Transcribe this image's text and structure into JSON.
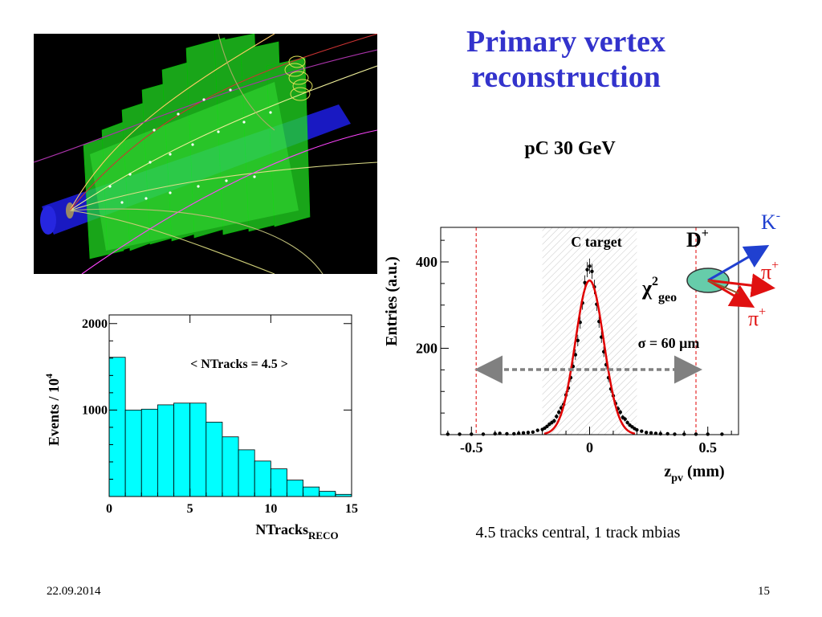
{
  "slide": {
    "title": "Primary vertex reconstruction",
    "subtitle": "pC  30 GeV",
    "caption": "4.5 tracks central, 1 track mbias",
    "footer_date": "22.09.2014",
    "footer_page": "15"
  },
  "colors": {
    "title": "#3333cc",
    "hist_fill": "#00ffff",
    "fit_curve": "#e00000",
    "kaon_arrow": "#2040d0",
    "pion_arrow": "#e01010",
    "dashed_marker": "#e00000"
  },
  "decay_sketch": {
    "particle": "D",
    "particle_sup": "+",
    "chi2": "χ",
    "chi2_sup": "2",
    "chi2_sub": "geo",
    "kaon": "K",
    "kaon_sup": "-",
    "pion1": "π",
    "pion1_sup": "+",
    "pion2": "π",
    "pion2_sup": "+"
  },
  "chart_data": [
    {
      "type": "bar",
      "xlabel_main": "NTracks",
      "xlabel_sub": "RECO",
      "ylabel_main": "Events / 10",
      "ylabel_sup": "4",
      "annotation": "< NTracks = 4.5 >",
      "xlim": [
        0,
        15
      ],
      "ylim": [
        0,
        2100
      ],
      "xticks": [
        0,
        5,
        10,
        15
      ],
      "yticks": [
        1000,
        2000
      ],
      "bin_edges": [
        0,
        1,
        2,
        3,
        4,
        5,
        6,
        7,
        8,
        9,
        10,
        11,
        12,
        13,
        14,
        15
      ],
      "values": [
        1610,
        1000,
        1010,
        1060,
        1080,
        1080,
        860,
        690,
        540,
        410,
        320,
        190,
        110,
        60,
        25
      ]
    },
    {
      "type": "scatter",
      "xlabel_main": "z",
      "xlabel_sub": "pv",
      "xlabel_rest": " (mm)",
      "ylabel": "Entries (a.u.)",
      "xlim": [
        -0.63,
        0.63
      ],
      "ylim": [
        0,
        480
      ],
      "xticks": [
        -0.5,
        0,
        0.5
      ],
      "yticks": [
        200,
        400
      ],
      "target_label": "C target",
      "target_band": [
        -0.2,
        0.2
      ],
      "dashed_lines": [
        -0.48,
        0.45
      ],
      "sigma_label": "σ = 60 μm",
      "fit_peak": 357,
      "fit_sigma_mm": 0.06,
      "points": [
        [
          -0.6,
          1
        ],
        [
          -0.55,
          1
        ],
        [
          -0.5,
          1
        ],
        [
          -0.45,
          1
        ],
        [
          -0.4,
          2
        ],
        [
          -0.38,
          3
        ],
        [
          -0.35,
          2
        ],
        [
          -0.32,
          2
        ],
        [
          -0.3,
          3
        ],
        [
          -0.28,
          4
        ],
        [
          -0.26,
          5
        ],
        [
          -0.24,
          6
        ],
        [
          -0.22,
          10
        ],
        [
          -0.2,
          12
        ],
        [
          -0.19,
          15
        ],
        [
          -0.18,
          19
        ],
        [
          -0.17,
          24
        ],
        [
          -0.16,
          28
        ],
        [
          -0.15,
          32
        ],
        [
          -0.14,
          42
        ],
        [
          -0.13,
          52
        ],
        [
          -0.12,
          62
        ],
        [
          -0.11,
          70
        ],
        [
          -0.1,
          92
        ],
        [
          -0.09,
          108
        ],
        [
          -0.08,
          132
        ],
        [
          -0.07,
          158
        ],
        [
          -0.06,
          185
        ],
        [
          -0.05,
          218
        ],
        [
          -0.04,
          260
        ],
        [
          -0.03,
          305
        ],
        [
          -0.02,
          352
        ],
        [
          -0.01,
          382
        ],
        [
          0.0,
          390
        ],
        [
          0.01,
          378
        ],
        [
          0.02,
          342
        ],
        [
          0.03,
          302
        ],
        [
          0.04,
          262
        ],
        [
          0.05,
          226
        ],
        [
          0.06,
          192
        ],
        [
          0.07,
          162
        ],
        [
          0.08,
          132
        ],
        [
          0.09,
          106
        ],
        [
          0.1,
          90
        ],
        [
          0.11,
          72
        ],
        [
          0.12,
          60
        ],
        [
          0.13,
          52
        ],
        [
          0.14,
          40
        ],
        [
          0.15,
          36
        ],
        [
          0.16,
          28
        ],
        [
          0.17,
          22
        ],
        [
          0.18,
          18
        ],
        [
          0.19,
          14
        ],
        [
          0.2,
          11
        ],
        [
          0.22,
          8
        ],
        [
          0.24,
          5
        ],
        [
          0.26,
          4
        ],
        [
          0.28,
          3
        ],
        [
          0.3,
          2
        ],
        [
          0.33,
          2
        ],
        [
          0.36,
          1
        ],
        [
          0.4,
          1
        ],
        [
          0.45,
          1
        ],
        [
          0.5,
          1
        ],
        [
          0.56,
          1
        ]
      ]
    }
  ]
}
